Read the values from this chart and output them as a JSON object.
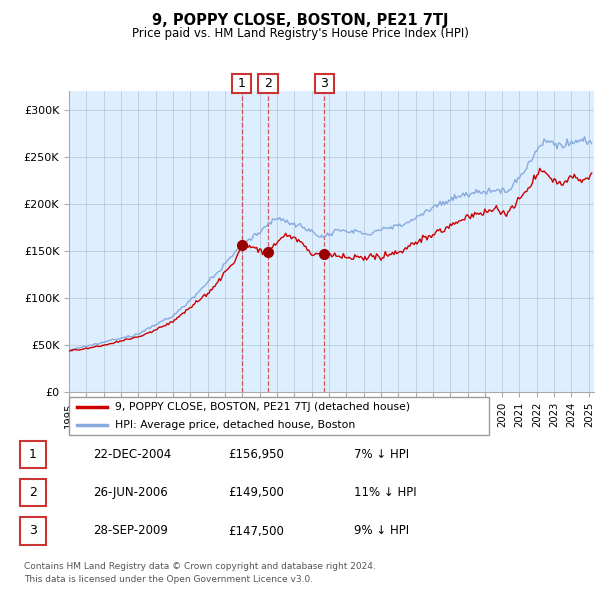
{
  "title": "9, POPPY CLOSE, BOSTON, PE21 7TJ",
  "subtitle": "Price paid vs. HM Land Registry's House Price Index (HPI)",
  "xlim_start": 1995.0,
  "xlim_end": 2025.3,
  "ylim_min": 0,
  "ylim_max": 320000,
  "yticks": [
    0,
    50000,
    100000,
    150000,
    200000,
    250000,
    300000
  ],
  "ytick_labels": [
    "£0",
    "£50K",
    "£100K",
    "£150K",
    "£200K",
    "£250K",
    "£300K"
  ],
  "sale_dates": [
    2004.97,
    2006.49,
    2009.74
  ],
  "sale_prices": [
    156950,
    149500,
    147500
  ],
  "sale_labels": [
    "1",
    "2",
    "3"
  ],
  "legend_line1": "9, POPPY CLOSE, BOSTON, PE21 7TJ (detached house)",
  "legend_line2": "HPI: Average price, detached house, Boston",
  "table_rows": [
    [
      "1",
      "22-DEC-2004",
      "£156,950",
      "7% ↓ HPI"
    ],
    [
      "2",
      "26-JUN-2006",
      "£149,500",
      "11% ↓ HPI"
    ],
    [
      "3",
      "28-SEP-2009",
      "£147,500",
      "9% ↓ HPI"
    ]
  ],
  "footnote1": "Contains HM Land Registry data © Crown copyright and database right 2024.",
  "footnote2": "This data is licensed under the Open Government Licence v3.0.",
  "line_color_red": "#cc0000",
  "line_color_blue": "#88aadd",
  "bg_color": "#ddeeff",
  "grid_color": "#bbccdd",
  "sale_marker_color": "#990000"
}
